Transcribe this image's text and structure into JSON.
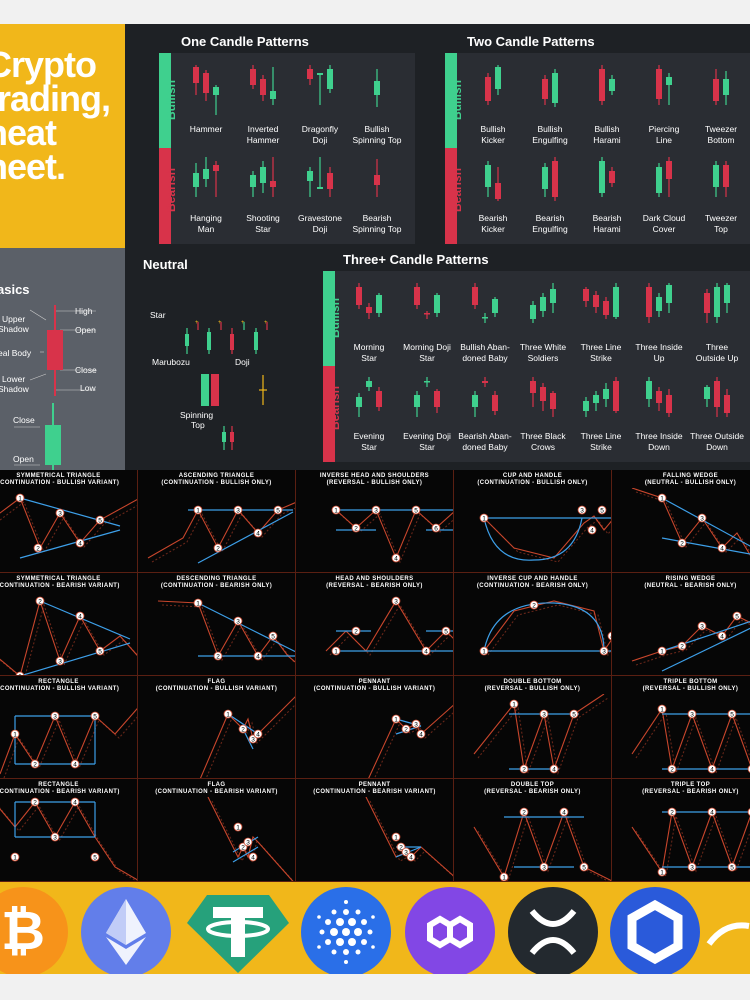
{
  "title": {
    "line1": "Crypto",
    "line2": "trading,",
    "line3": "heat",
    "line4": "heet."
  },
  "basics": {
    "heading": "asics",
    "labels": {
      "upper_shadow_1": "Upper",
      "upper_shadow_2": "Shadow",
      "real_body": "eal Body",
      "lower_shadow_1": "Lower",
      "lower_shadow_2": "Shadow",
      "high": "High",
      "open_top": "Open",
      "close_top": "Close",
      "low": "Low",
      "close_bottom": "Close",
      "open_bottom": "Open"
    }
  },
  "one_candle": {
    "title": "One Candle Patterns",
    "bullish_label": "Bullish",
    "bearish_label": "Bearish",
    "bullish": [
      "Hammer",
      "Inverted\nHammer",
      "Dragonfly\nDoji",
      "Bullish\nSpinning Top"
    ],
    "bearish": [
      "Hanging\nMan",
      "Shooting\nStar",
      "Gravestone\nDoji",
      "Bearish\nSpinning Top"
    ]
  },
  "two_candle": {
    "title": "Two Candle Patterns",
    "bullish_label": "Bullish",
    "bearish_label": "Bearish",
    "bullish": [
      "Bullish\nKicker",
      "Bullish\nEngulfing",
      "Bullish\nHarami",
      "Piercing\nLine",
      "Tweezer\nBottom"
    ],
    "bearish": [
      "Bearish\nKicker",
      "Bearish\nEngulfing",
      "Bearish\nHarami",
      "Dark Cloud\nCover",
      "Tweezer\nTop"
    ]
  },
  "neutral": {
    "title": "Neutral",
    "star": "Star",
    "marubozu": "Marubozu",
    "doji": "Doji",
    "spinning_top_1": "Spinning",
    "spinning_top_2": "Top"
  },
  "three_candle": {
    "title": "Three+ Candle Patterns",
    "bullish_label": "Bullish",
    "bearish_label": "Bearish",
    "bullish": [
      "Morning\nStar",
      "Morning Doji\nStar",
      "Bullish Aban-\ndoned Baby",
      "Three White\nSoldiers",
      "Three Line\nStrike",
      "Three Inside\nUp",
      "Three\nOutside Up"
    ],
    "bearish": [
      "Evening\nStar",
      "Evening Doji\nStar",
      "Bearish Aban-\ndoned Baby",
      "Three Black\nCrows",
      "Three Line\nStrike",
      "Three Inside\nDown",
      "Three Outside\nDown"
    ]
  },
  "chart_patterns": [
    {
      "t1": "SYMMETRICAL TRIANGLE",
      "t2": "(CONTINUATION - BULLISH VARIANT)"
    },
    {
      "t1": "ASCENDING TRIANGLE",
      "t2": "(CONTINUATION - BULLISH ONLY)"
    },
    {
      "t1": "INVERSE HEAD AND SHOULDERS",
      "t2": "(REVERSAL - BULLISH ONLY)"
    },
    {
      "t1": "CUP AND HANDLE",
      "t2": "(CONTINUATION - BULLISH ONLY)"
    },
    {
      "t1": "FALLING WEDGE",
      "t2": "(NEUTRAL - BULLISH ONLY)"
    },
    {
      "t1": "SYMMETRICAL TRIANGLE",
      "t2": "(CONTINUATION - BEARISH VARIANT)"
    },
    {
      "t1": "DESCENDING TRIANGLE",
      "t2": "(CONTINUATION - BEARISH ONLY)"
    },
    {
      "t1": "HEAD AND SHOULDERS",
      "t2": "(REVERSAL - BEARISH ONLY)"
    },
    {
      "t1": "INVERSE CUP AND HANDLE",
      "t2": "(CONTINUATION - BEARISH ONLY)"
    },
    {
      "t1": "RISING WEDGE",
      "t2": "(NEUTRAL - BEARISH ONLY)"
    },
    {
      "t1": "RECTANGLE",
      "t2": "(CONTINUATION - BULLISH VARIANT)"
    },
    {
      "t1": "FLAG",
      "t2": "(CONTINUATION - BULLISH VARIANT)"
    },
    {
      "t1": "PENNANT",
      "t2": "(CONTINUATION - BULLISH VARIANT)"
    },
    {
      "t1": "DOUBLE BOTTOM",
      "t2": "(REVERSAL - BULLISH ONLY)"
    },
    {
      "t1": "TRIPLE BOTTOM",
      "t2": "(REVERSAL - BULLISH ONLY)"
    },
    {
      "t1": "RECTANGLE",
      "t2": "(CONTINUATION - BEARISH VARIANT)"
    },
    {
      "t1": "FLAG",
      "t2": "(CONTINUATION - BEARISH VARIANT)"
    },
    {
      "t1": "PENNANT",
      "t2": "(CONTINUATION - BEARISH VARIANT)"
    },
    {
      "t1": "DOUBLE TOP",
      "t2": "(REVERSAL - BEARISH ONLY)"
    },
    {
      "t1": "TRIPLE TOP",
      "t2": "(REVERSAL - BEARISH ONLY)"
    }
  ],
  "coins": [
    {
      "name": "bitcoin-logo-icon",
      "color": "#f7931a"
    },
    {
      "name": "ethereum-logo-icon",
      "color": "#627eea"
    },
    {
      "name": "tether-logo-icon",
      "color": "#26a17b"
    },
    {
      "name": "cardano-logo-icon",
      "color": "#2a6fe8"
    },
    {
      "name": "polygon-logo-icon",
      "color": "#8247e5"
    },
    {
      "name": "xrp-logo-icon",
      "color": "#23292f"
    },
    {
      "name": "chainlink-logo-icon",
      "color": "#2a5ada"
    }
  ],
  "colors": {
    "bull": "#3fd08e",
    "bear": "#d8334a",
    "accent": "#f1b71a",
    "panel": "#1e2125",
    "line_blue": "#3d9fe8",
    "line_red": "#c8462c"
  }
}
